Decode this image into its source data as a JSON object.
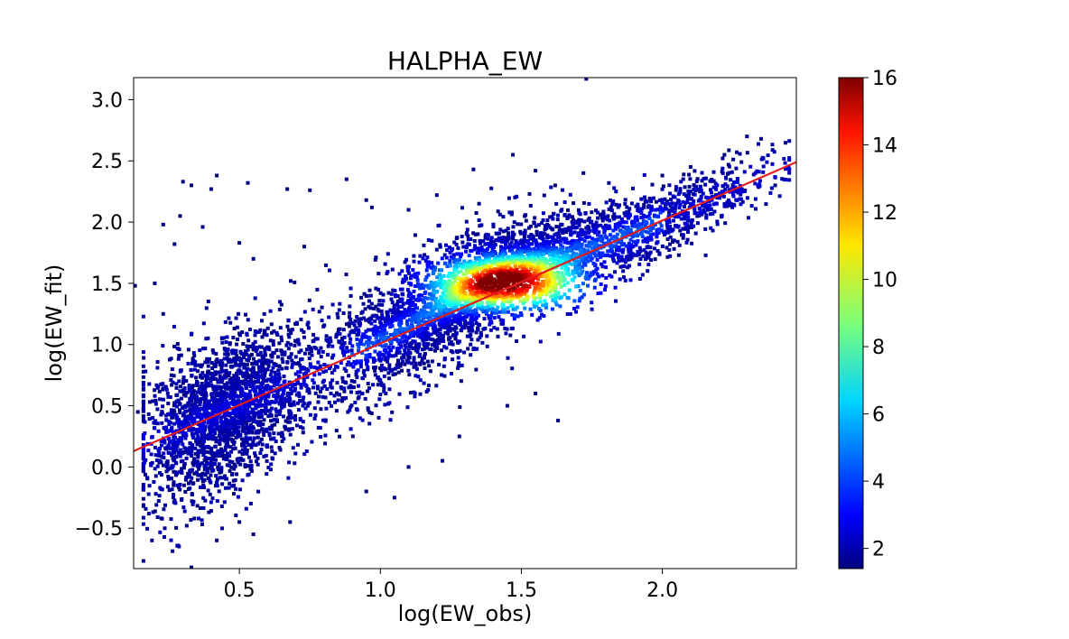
{
  "chart_data": {
    "type": "heatmap",
    "subtype": "2d-density-scatter",
    "title": "HALPHA_EW",
    "xlabel": "log(EW_obs)",
    "ylabel": "log(EW_fit)",
    "xlim": [
      0.125,
      2.475
    ],
    "ylim": [
      -0.83,
      3.18
    ],
    "x_ticks": [
      0.5,
      1.0,
      1.5,
      2.0
    ],
    "x_tick_labels": [
      "0.5",
      "1.0",
      "1.5",
      "2.0"
    ],
    "y_ticks": [
      -0.5,
      0.0,
      0.5,
      1.0,
      1.5,
      2.0,
      2.5,
      3.0
    ],
    "y_tick_labels": [
      "−0.5",
      "0.0",
      "0.5",
      "1.0",
      "1.5",
      "2.0",
      "2.5",
      "3.0"
    ],
    "grid": false,
    "fit_line": {
      "color": "#e31a1c",
      "points": [
        [
          0.125,
          0.13
        ],
        [
          2.475,
          2.49
        ]
      ]
    },
    "colorbar": {
      "colormap": "jet",
      "range": [
        1.4,
        16
      ],
      "ticks": [
        2,
        4,
        6,
        8,
        10,
        12,
        14,
        16
      ],
      "tick_labels": [
        "2",
        "4",
        "6",
        "8",
        "10",
        "12",
        "14",
        "16"
      ]
    },
    "density_model": {
      "description_of_trend": "dense band following y ≈ x, peak density near x=1.45, y=1.5",
      "peak": [
        1.45,
        1.5
      ],
      "min_count": 1,
      "max_count": 16
    },
    "outliers": [
      [
        0.13,
        1.48
      ],
      [
        0.27,
        1.82
      ],
      [
        0.3,
        2.33
      ],
      [
        0.42,
        2.38
      ],
      [
        0.33,
        2.3
      ],
      [
        0.4,
        2.27
      ],
      [
        0.53,
        2.32
      ],
      [
        0.67,
        2.27
      ],
      [
        0.75,
        2.26
      ],
      [
        0.88,
        2.35
      ],
      [
        0.95,
        2.18
      ],
      [
        0.97,
        2.12
      ],
      [
        0.29,
        2.05
      ],
      [
        0.37,
        1.96
      ],
      [
        0.5,
        1.83
      ],
      [
        0.55,
        1.7
      ],
      [
        0.73,
        1.8
      ],
      [
        1.1,
        2.1
      ],
      [
        1.33,
        2.43
      ],
      [
        1.47,
        2.55
      ],
      [
        1.55,
        2.42
      ],
      [
        1.72,
        2.4
      ],
      [
        1.62,
        2.3
      ],
      [
        1.73,
        3.17
      ],
      [
        1.2,
        2.22
      ],
      [
        1.35,
        2.15
      ],
      [
        0.23,
        1.98
      ],
      [
        0.2,
        1.5
      ],
      [
        0.23,
        1.25
      ],
      [
        0.14,
        0.45
      ],
      [
        0.27,
        0.45
      ],
      [
        0.36,
        0.2
      ],
      [
        0.19,
        -0.6
      ],
      [
        0.33,
        -0.82
      ],
      [
        0.42,
        -0.6
      ],
      [
        0.55,
        -0.55
      ],
      [
        0.5,
        -0.45
      ],
      [
        0.68,
        -0.45
      ],
      [
        1.28,
        0.25
      ],
      [
        1.63,
        0.38
      ],
      [
        1.22,
        0.05
      ],
      [
        1.1,
        0.0
      ],
      [
        1.05,
        -0.25
      ],
      [
        0.95,
        -0.2
      ],
      [
        1.45,
        0.5
      ],
      [
        1.55,
        0.6
      ],
      [
        2.3,
        2.7
      ],
      [
        2.35,
        2.68
      ],
      [
        2.4,
        2.3
      ],
      [
        2.22,
        2.55
      ],
      [
        2.1,
        2.45
      ],
      [
        2.0,
        2.38
      ]
    ]
  }
}
